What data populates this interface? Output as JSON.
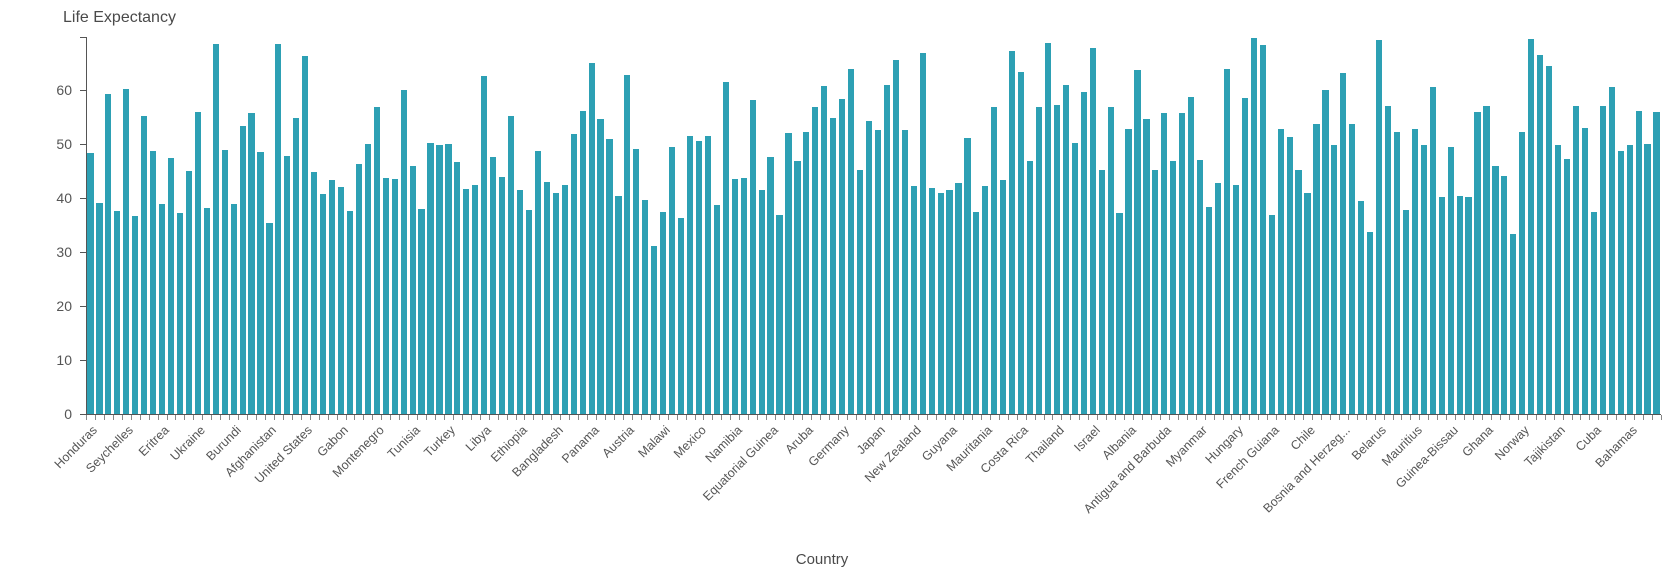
{
  "chart": {
    "title": "Life Expectancy",
    "x_axis_label": "Country"
  },
  "chart_data": {
    "type": "bar",
    "title": "Life Expectancy",
    "xlabel": "Country",
    "ylabel": "Life Expectancy",
    "ylim": [
      0,
      69.8
    ],
    "y_ticks": [
      0,
      10,
      20,
      30,
      40,
      50,
      60
    ],
    "grid": false,
    "legend": false,
    "bar_color": "#2DA0B4",
    "axis_color": "#555555",
    "tick_label_color": "#555555",
    "label_every": 4,
    "visible_labels": [
      "Honduras",
      "Seychelles",
      "Eritrea",
      "Ukraine",
      "Burundi",
      "Afghanistan",
      "United States",
      "Gabon",
      "Montenegro",
      "Tunisia",
      "Turkey",
      "Libya",
      "Ethiopia",
      "Bangladesh",
      "Panama",
      "Austria",
      "Malawi",
      "Mexico",
      "Namibia",
      "Equatorial Guinea",
      "Aruba",
      "Germany",
      "Japan",
      "New Zealand",
      "Guyana",
      "Mauritania",
      "Costa Rica",
      "Thailand",
      "Israel",
      "Albania",
      "Antigua and Barbuda",
      "Myanmar",
      "Hungary",
      "French Guiana",
      "Chile",
      "Bosnia and Herzeg...",
      "Belarus",
      "Mauritius",
      "Guinea-Bissau",
      "Ghana",
      "Norway",
      "Tajikistan",
      "Cuba",
      "Bahamas"
    ],
    "values": [
      48.2,
      39.0,
      59.1,
      37.5,
      60.2,
      36.6,
      55.2,
      48.6,
      38.8,
      47.4,
      37.1,
      44.9,
      55.9,
      38.1,
      68.4,
      48.8,
      38.8,
      53.2,
      55.7,
      48.4,
      35.4,
      68.5,
      47.7,
      54.8,
      66.2,
      44.8,
      40.6,
      43.2,
      42.0,
      37.5,
      46.3,
      50.0,
      56.8,
      43.6,
      43.4,
      59.9,
      45.8,
      38.0,
      50.1,
      49.8,
      50.0,
      46.6,
      41.7,
      42.4,
      62.5,
      47.6,
      43.9,
      55.2,
      41.4,
      37.7,
      48.7,
      42.9,
      40.8,
      42.3,
      51.7,
      56.1,
      64.9,
      54.5,
      50.8,
      40.3,
      62.7,
      49.1,
      39.5,
      31.0,
      37.4,
      49.3,
      36.3,
      51.5,
      50.5,
      51.4,
      38.7,
      61.4,
      43.4,
      43.7,
      58.1,
      41.5,
      47.6,
      36.8,
      52.0,
      46.8,
      52.1,
      56.8,
      60.6,
      54.8,
      58.2,
      63.9,
      45.2,
      54.2,
      52.5,
      60.8,
      65.5,
      52.5,
      42.1,
      66.8,
      41.8,
      40.8,
      41.4,
      42.7,
      51.1,
      37.4,
      42.1,
      56.7,
      43.2,
      67.2,
      63.3,
      46.8,
      56.8,
      68.7,
      57.1,
      60.8,
      50.2,
      59.6,
      67.6,
      45.2,
      56.8,
      37.1,
      52.8,
      63.6,
      54.5,
      45.2,
      55.6,
      46.8,
      55.6,
      58.7,
      46.9,
      38.3,
      42.7,
      63.9,
      42.3,
      58.5,
      69.5,
      68.2,
      36.8,
      52.8,
      51.3,
      45.2,
      40.8,
      53.6,
      59.9,
      49.7,
      63.1,
      53.6,
      39.4,
      33.7,
      69.2,
      56.9,
      52.2,
      37.8,
      52.8,
      49.7,
      60.4,
      40.1,
      49.3,
      40.3,
      40.1,
      55.9,
      56.9,
      45.8,
      44.1,
      33.2,
      52.1,
      69.3,
      66.4,
      64.3,
      49.7,
      47.2,
      56.9,
      52.9,
      37.4,
      57.0,
      60.5,
      48.6,
      49.7,
      56.0,
      49.9,
      55.9
    ]
  }
}
